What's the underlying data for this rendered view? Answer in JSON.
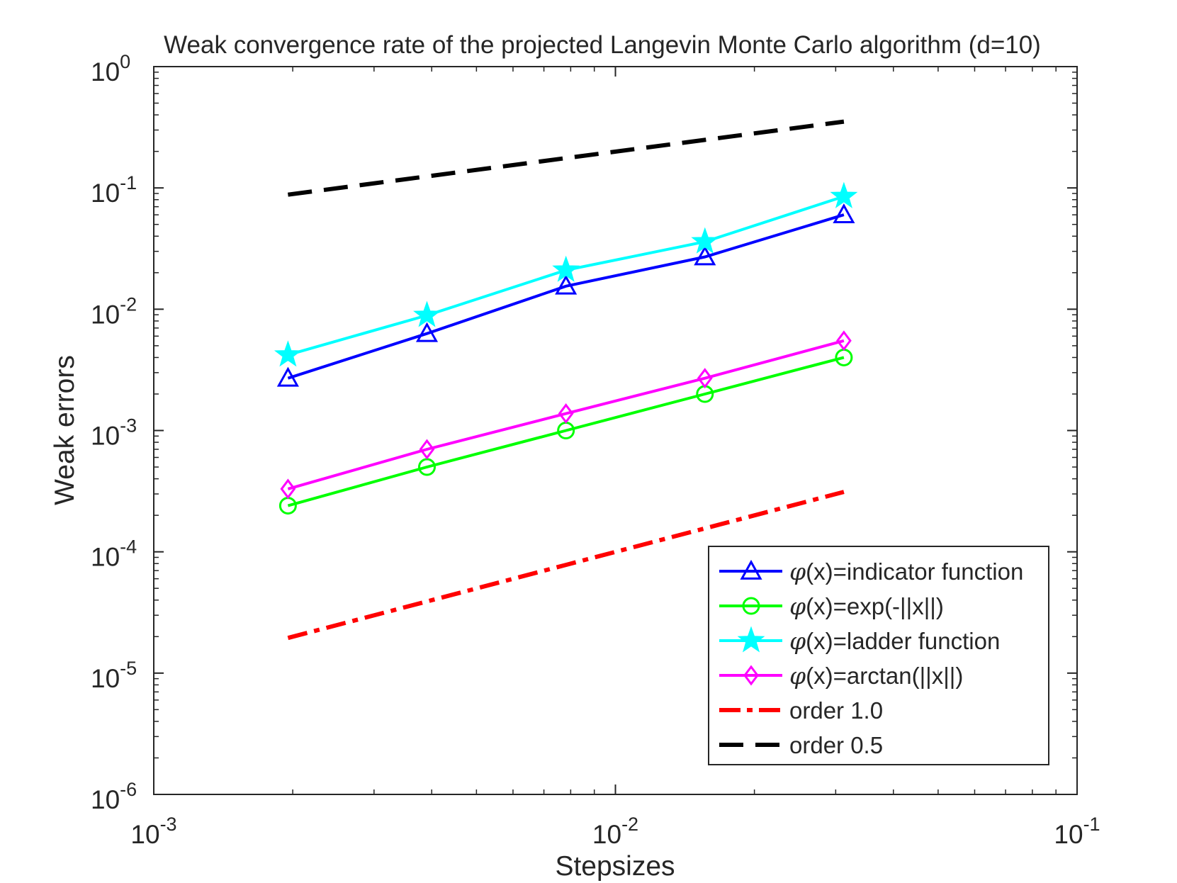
{
  "chart_data": {
    "type": "line",
    "title": "Weak convergence rate of the projected Langevin Monte Carlo algorithm (d=10)",
    "xlabel": "Stepsizes",
    "ylabel": "Weak errors",
    "xscale": "log",
    "yscale": "log",
    "xlim": [
      0.001,
      0.1
    ],
    "ylim": [
      1e-06,
      1
    ],
    "grid": false,
    "legend_position": "bottom-right",
    "x_ticks": [
      {
        "value": 0.001,
        "base": "10",
        "exp": "-3"
      },
      {
        "value": 0.01,
        "base": "10",
        "exp": "-2"
      },
      {
        "value": 0.1,
        "base": "10",
        "exp": "-1"
      }
    ],
    "y_ticks": [
      {
        "value": 1e-06,
        "base": "10",
        "exp": "-6"
      },
      {
        "value": 1e-05,
        "base": "10",
        "exp": "-5"
      },
      {
        "value": 0.0001,
        "base": "10",
        "exp": "-4"
      },
      {
        "value": 0.001,
        "base": "10",
        "exp": "-3"
      },
      {
        "value": 0.01,
        "base": "10",
        "exp": "-2"
      },
      {
        "value": 0.1,
        "base": "10",
        "exp": "-1"
      },
      {
        "value": 1,
        "base": "10",
        "exp": "0"
      }
    ],
    "x": [
      0.001953,
      0.003906,
      0.007813,
      0.015625,
      0.03125
    ],
    "series": [
      {
        "key": "indicator",
        "name": "(x)=indicator function",
        "color": "#0000ff",
        "marker": "triangle",
        "style": "solid",
        "values": [
          0.0027,
          0.0063,
          0.0155,
          0.027,
          0.06
        ]
      },
      {
        "key": "exp",
        "name": "(x)=exp(-||x||)",
        "color": "#00ff00",
        "marker": "circle",
        "style": "solid",
        "values": [
          0.00024,
          0.0005,
          0.001,
          0.002,
          0.004
        ]
      },
      {
        "key": "ladder",
        "name": "(x)=ladder function",
        "color": "#00ffff",
        "marker": "star",
        "style": "solid",
        "values": [
          0.0042,
          0.0089,
          0.021,
          0.036,
          0.085
        ]
      },
      {
        "key": "arctan",
        "name": "(x)=arctan(||x||)",
        "color": "#ff00ff",
        "marker": "diamond",
        "style": "solid",
        "values": [
          0.00033,
          0.0007,
          0.00138,
          0.0027,
          0.0055
        ]
      },
      {
        "key": "order1",
        "name": "order 1.0",
        "color": "#ff0000",
        "marker": "none",
        "style": "dashdot",
        "values": [
          1.95e-05,
          3.9e-05,
          7.8e-05,
          0.000156,
          0.000312
        ]
      },
      {
        "key": "order05",
        "name": "order 0.5",
        "color": "#000000",
        "marker": "none",
        "style": "dashed",
        "values": [
          0.088,
          0.1245,
          0.176,
          0.249,
          0.352
        ]
      }
    ],
    "legend_symbol": "φ"
  }
}
